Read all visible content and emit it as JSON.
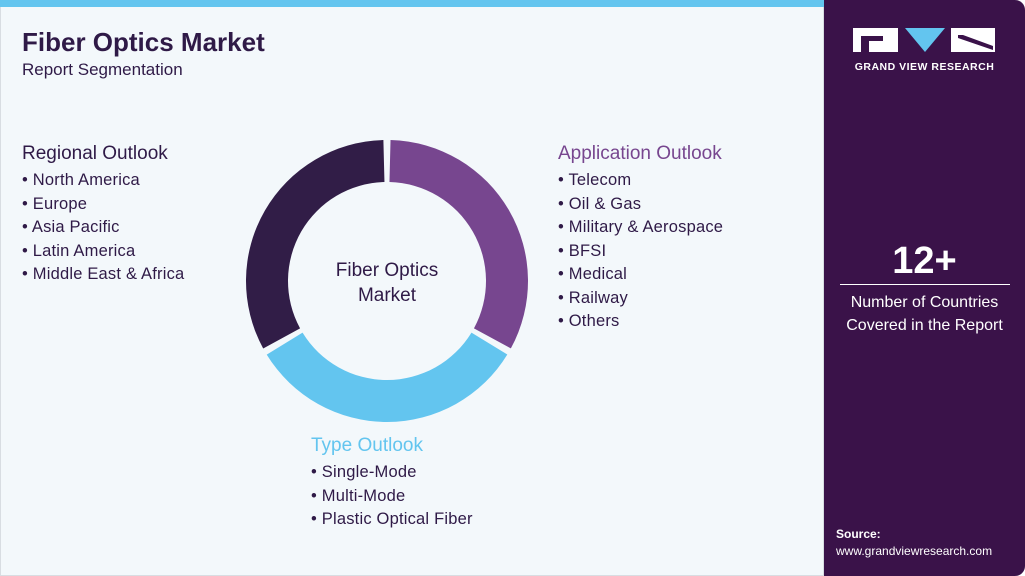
{
  "header": {
    "title": "Fiber Optics Market",
    "subtitle": "Report Segmentation"
  },
  "donut": {
    "center_label_line1": "Fiber Optics",
    "center_label_line2": "Market",
    "segments": [
      {
        "share": 0.3333,
        "color": "#77468f"
      },
      {
        "share": 0.3333,
        "color": "#63c5ef"
      },
      {
        "share": 0.3333,
        "color": "#311d47"
      }
    ]
  },
  "regional": {
    "heading": "Regional Outlook",
    "color": "#2f1a47",
    "items": [
      "North America",
      "Europe",
      "Asia Pacific",
      "Latin America",
      "Middle East & Africa"
    ]
  },
  "application": {
    "heading": "Application Outlook",
    "color": "#77468f",
    "items": [
      "Telecom",
      "Oil & Gas",
      "Military & Aerospace",
      "BFSI",
      "Medical",
      "Railway",
      "Others"
    ]
  },
  "type": {
    "heading": "Type Outlook",
    "color": "#63c5ef",
    "items": [
      "Single-Mode",
      "Multi-Mode",
      "Plastic Optical Fiber"
    ]
  },
  "sidebar": {
    "brand": "GRAND VIEW RESEARCH",
    "stat": "12+",
    "stat_caption_line1": "Number of Countries",
    "stat_caption_line2": "Covered in the Report",
    "source_label": "Source:",
    "source_url": "www.grandviewresearch.com"
  }
}
